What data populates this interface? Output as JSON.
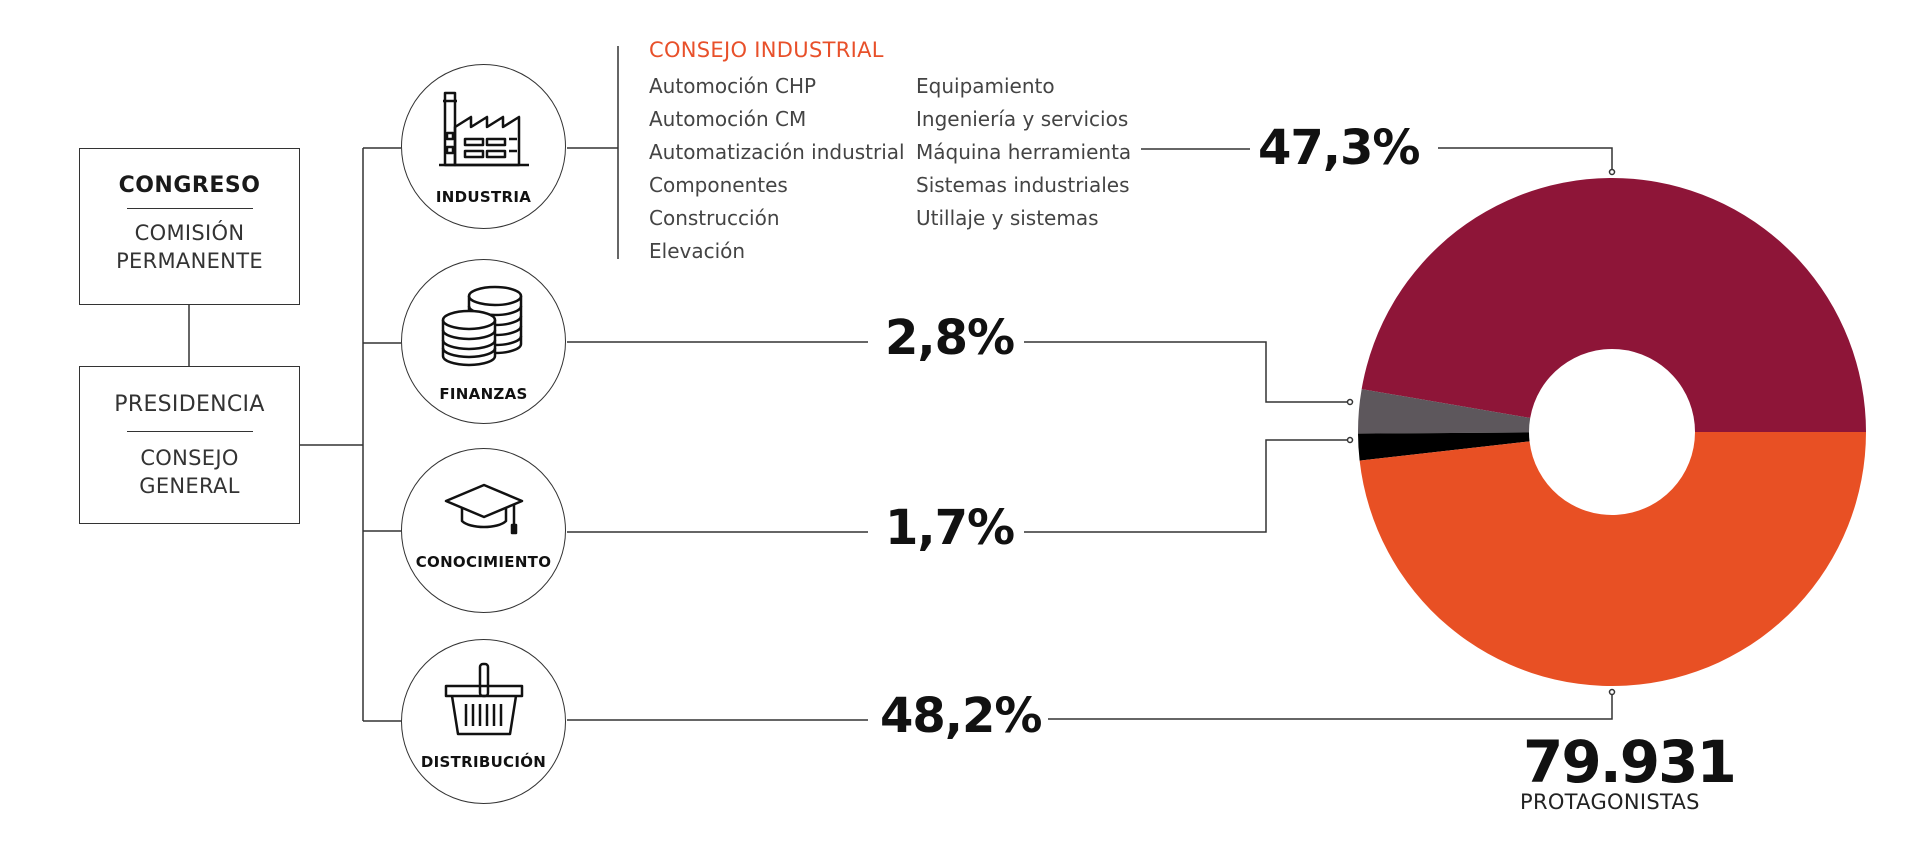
{
  "hierarchy": {
    "top_box": {
      "title": "CONGRESO",
      "subtitle_line1": "COMISIÓN",
      "subtitle_line2": "PERMANENTE"
    },
    "bottom_box": {
      "title_line1": "PRESIDENCIA",
      "subtitle_line1": "CONSEJO",
      "subtitle_line2": "GENERAL"
    }
  },
  "sectors": [
    {
      "label": "INDUSTRIA",
      "icon": "factory-icon",
      "percent": "47,3%"
    },
    {
      "label": "FINANZAS",
      "icon": "coins-icon",
      "percent": "2,8%"
    },
    {
      "label": "CONOCIMIENTO",
      "icon": "graduation-cap-icon",
      "percent": "1,7%"
    },
    {
      "label": "DISTRIBUCIÓN",
      "icon": "basket-icon",
      "percent": "48,2%"
    }
  ],
  "consejo_industrial": {
    "title": "CONSEJO INDUSTRIAL",
    "column_1": [
      "Automoción CHP",
      "Automoción CM",
      "Automatización industrial",
      "Componentes",
      "Construcción",
      "Elevación"
    ],
    "column_2": [
      "Equipamiento",
      "Ingeniería y servicios",
      "Máquina herramienta",
      "Sistemas industriales",
      "Utillaje y sistemas"
    ]
  },
  "total": {
    "number": "79.931",
    "label": "PROTAGONISTAS"
  },
  "colors": {
    "industria": "#8e1538",
    "finanzas": "#5d575c",
    "conocimiento": "#000000",
    "distribucion": "#e85024",
    "accent": "#e8502a",
    "line": "#333333"
  },
  "chart_data": {
    "type": "pie",
    "donut": true,
    "categories": [
      "INDUSTRIA",
      "FINANZAS",
      "CONOCIMIENTO",
      "DISTRIBUCIÓN"
    ],
    "values": [
      47.3,
      2.8,
      1.7,
      48.2
    ],
    "data_labels": [
      "47,3%",
      "2,8%",
      "1,7%",
      "48,2%"
    ],
    "total_label": "79.931 PROTAGONISTAS",
    "colors": [
      "#8e1538",
      "#5d575c",
      "#000000",
      "#e85024"
    ]
  }
}
